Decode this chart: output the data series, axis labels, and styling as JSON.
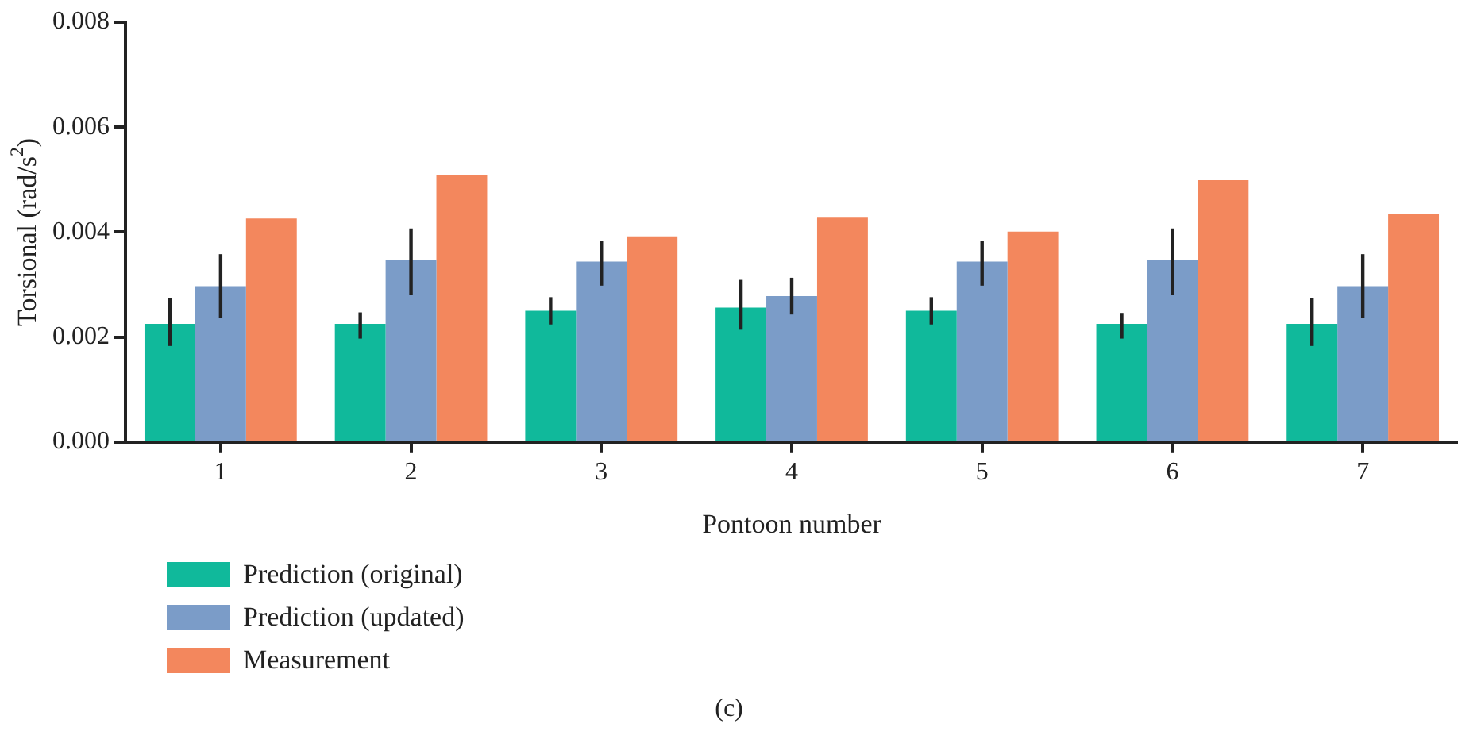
{
  "chart_data": {
    "type": "bar",
    "xlabel": "Pontoon number",
    "ylabel": "Torsional (rad/s$^{2}$)",
    "categories": [
      "1",
      "2",
      "3",
      "4",
      "5",
      "6",
      "7"
    ],
    "series": [
      {
        "name": "Prediction (original)",
        "color": "#10b99b",
        "values": [
          0.00225,
          0.00225,
          0.0025,
          0.00256,
          0.0025,
          0.00225,
          0.00225
        ],
        "errors": [
          [
            0.00183,
            0.00275
          ],
          [
            0.00197,
            0.00247
          ],
          [
            0.00224,
            0.00276
          ],
          [
            0.00214,
            0.00309
          ],
          [
            0.00224,
            0.00276
          ],
          [
            0.00197,
            0.00246
          ],
          [
            0.00183,
            0.00275
          ]
        ]
      },
      {
        "name": "Prediction (updated)",
        "color": "#7b9cc8",
        "values": [
          0.00297,
          0.00347,
          0.00344,
          0.00278,
          0.00344,
          0.00347,
          0.00297
        ],
        "errors": [
          [
            0.00236,
            0.00358
          ],
          [
            0.00281,
            0.00407
          ],
          [
            0.00298,
            0.00384
          ],
          [
            0.00243,
            0.00313
          ],
          [
            0.00298,
            0.00384
          ],
          [
            0.00281,
            0.00407
          ],
          [
            0.00236,
            0.00358
          ]
        ]
      },
      {
        "name": "Measurement",
        "color": "#f3875d",
        "values": [
          0.00426,
          0.00508,
          0.00392,
          0.00429,
          0.00401,
          0.00499,
          0.00435
        ]
      }
    ],
    "ylim": [
      0,
      0.008
    ],
    "yticks": [
      {
        "value": 0,
        "label": "0.000"
      },
      {
        "value": 0.002,
        "label": "0.002"
      },
      {
        "value": 0.004,
        "label": "0.004"
      },
      {
        "value": 0.006,
        "label": "0.006"
      },
      {
        "value": 0.008,
        "label": "0.008"
      }
    ],
    "legend": "bottom left",
    "annotations": [
      "(c)"
    ]
  }
}
